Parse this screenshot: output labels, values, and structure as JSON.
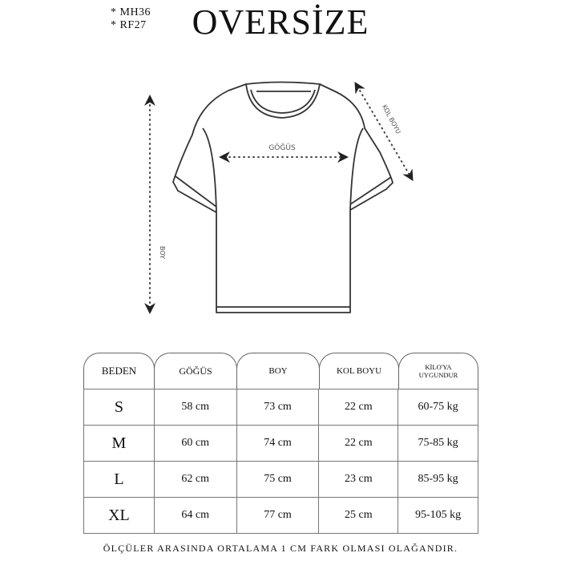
{
  "codes": [
    "* MH36",
    "* RF27"
  ],
  "title": "OVERSİZE",
  "diagram": {
    "chest_label": "GÖĞÜS",
    "length_label": "BOY",
    "sleeve_label": "KOL BOYU"
  },
  "table": {
    "headers": [
      "BEDEN",
      "GÖĞÜS",
      "BOY",
      "KOL BOYU",
      "KİLO'YA UYGUNDUR"
    ],
    "header_lines": {
      "weight_line1": "KİLO'YA",
      "weight_line2": "UYGUNDUR"
    },
    "rows": [
      [
        "S",
        "58 cm",
        "73 cm",
        "22  cm",
        "60-75 kg"
      ],
      [
        "M",
        "60 cm",
        "74 cm",
        "22 cm",
        "75-85 kg"
      ],
      [
        "L",
        "62 cm",
        "75 cm",
        "23 cm",
        "85-95 kg"
      ],
      [
        "XL",
        "64 cm",
        "77 cm",
        "25 cm",
        "95-105 kg"
      ]
    ]
  },
  "footer": "ÖLÇÜLER ARASINDA ORTALAMA 1 CM FARK OLMASI OLAĞANDIR."
}
